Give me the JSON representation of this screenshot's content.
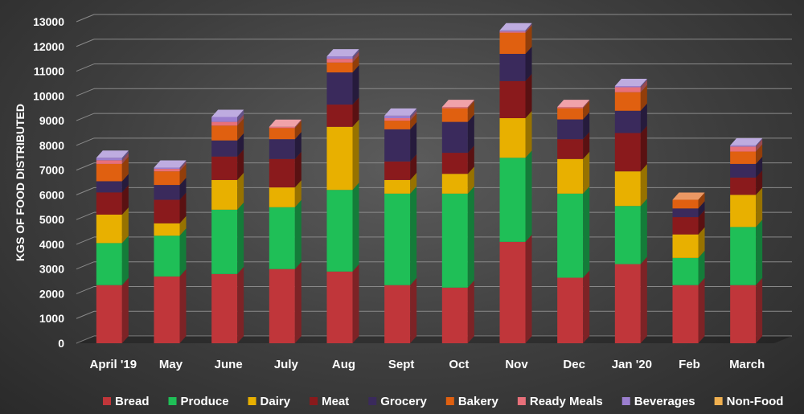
{
  "chart_data": {
    "type": "bar",
    "stacked": true,
    "title": "",
    "xlabel": "",
    "ylabel": "KGS OF FOOD DISTRIBUTED",
    "ylim": [
      0,
      13000
    ],
    "yticks": [
      0,
      1000,
      2000,
      3000,
      4000,
      5000,
      6000,
      7000,
      8000,
      9000,
      10000,
      11000,
      12000,
      13000
    ],
    "grid": true,
    "legend_position": "bottom",
    "categories": [
      "April '19",
      "May",
      "June",
      "July",
      "Aug",
      "Sept",
      "Oct",
      "Nov",
      "Dec",
      "Jan '20",
      "Feb",
      "March"
    ],
    "series": [
      {
        "name": "Bread",
        "color": "#c0363a",
        "values": [
          2350,
          2700,
          2800,
          3000,
          2900,
          2350,
          2250,
          4100,
          2650,
          3200,
          2350,
          2350
        ]
      },
      {
        "name": "Produce",
        "color": "#1fbf57",
        "values": [
          1700,
          1650,
          2600,
          2500,
          3300,
          3700,
          3800,
          3400,
          3400,
          2350,
          1100,
          2350
        ]
      },
      {
        "name": "Dairy",
        "color": "#e8b000",
        "values": [
          1150,
          500,
          1200,
          800,
          2550,
          550,
          800,
          1600,
          1400,
          1400,
          950,
          1300
        ]
      },
      {
        "name": "Meat",
        "color": "#8a1a1c",
        "values": [
          900,
          950,
          950,
          1150,
          900,
          750,
          850,
          1500,
          800,
          1550,
          700,
          700
        ]
      },
      {
        "name": "Grocery",
        "color": "#3a2a5c",
        "values": [
          450,
          600,
          650,
          800,
          1300,
          1300,
          1250,
          1100,
          800,
          900,
          350,
          550
        ]
      },
      {
        "name": "Bakery",
        "color": "#e06010",
        "values": [
          700,
          550,
          600,
          450,
          400,
          350,
          550,
          850,
          450,
          750,
          350,
          500
        ]
      },
      {
        "name": "Ready Meals",
        "color": "#e8707a",
        "values": [
          150,
          100,
          150,
          50,
          150,
          100,
          50,
          50,
          50,
          200,
          0,
          200
        ]
      },
      {
        "name": "Beverages",
        "color": "#9b7fcf",
        "values": [
          100,
          50,
          200,
          0,
          100,
          100,
          0,
          50,
          0,
          50,
          0,
          50
        ]
      },
      {
        "name": "Non-Food",
        "color": "#f0b050",
        "values": [
          0,
          0,
          0,
          0,
          0,
          0,
          0,
          0,
          0,
          0,
          0,
          0
        ]
      }
    ]
  }
}
